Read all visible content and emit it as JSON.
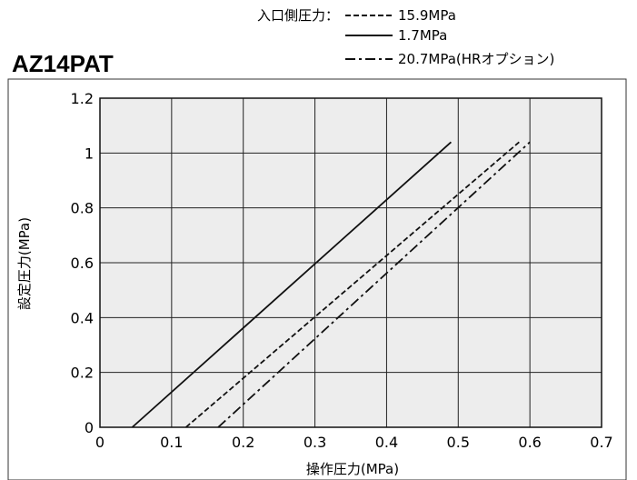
{
  "chart_data": {
    "type": "line",
    "title": "AZ14PAT",
    "legend_title": "入口側圧力：",
    "xlabel": "操作圧力(MPa)",
    "ylabel": "設定圧力(MPa)",
    "xlim": [
      0,
      0.7
    ],
    "ylim": [
      0,
      1.2
    ],
    "x_ticks": [
      0,
      0.1,
      0.2,
      0.3,
      0.4,
      0.5,
      0.6,
      0.7
    ],
    "y_ticks": [
      0,
      0.2,
      0.4,
      0.6,
      0.8,
      1,
      1.2
    ],
    "x_tick_labels": [
      "0",
      "0.1",
      "0.2",
      "0.3",
      "0.4",
      "0.5",
      "0.6",
      "0.7"
    ],
    "y_tick_labels": [
      "0",
      "0.2",
      "0.4",
      "0.6",
      "0.8",
      "1",
      "1.2"
    ],
    "grid": true,
    "legend_position": "top-right",
    "background_color": "#ededed",
    "series": [
      {
        "name": "15.9MPa",
        "style": "dashed",
        "color": "#111111",
        "points": [
          [
            0.12,
            0
          ],
          [
            0.585,
            1.04
          ]
        ]
      },
      {
        "name": "1.7MPa",
        "style": "solid",
        "color": "#111111",
        "points": [
          [
            0.045,
            0
          ],
          [
            0.49,
            1.04
          ]
        ]
      },
      {
        "name": "20.7MPa(HRオプション)",
        "style": "dashdot",
        "color": "#111111",
        "points": [
          [
            0.165,
            0
          ],
          [
            0.6,
            1.04
          ]
        ]
      }
    ]
  }
}
